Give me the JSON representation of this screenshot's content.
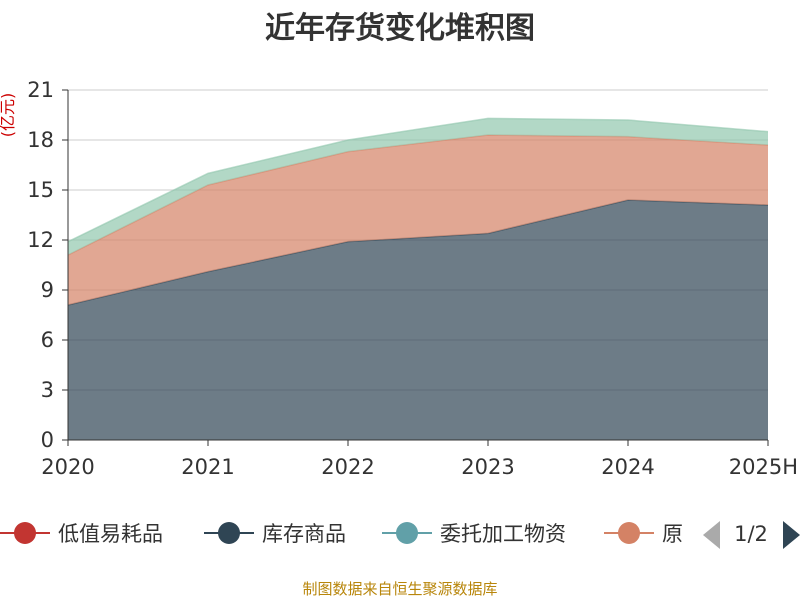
{
  "chart_data": {
    "type": "area",
    "stacked": true,
    "title": "近年存货变化堆积图",
    "ylabel": "亿元",
    "ylabel_display": "(亿元)",
    "xlabel": "",
    "ylim": [
      0,
      21
    ],
    "yticks": [
      0,
      3,
      6,
      9,
      12,
      15,
      18,
      21
    ],
    "grid": true,
    "categories": [
      "2020",
      "2021",
      "2022",
      "2023",
      "2024",
      "2025H"
    ],
    "series": [
      {
        "name": "低值易耗品",
        "color": "#c23531",
        "values": [
          0,
          0,
          0,
          0,
          0,
          0
        ],
        "draw": false
      },
      {
        "name": "库存商品",
        "color": "#2f4554",
        "values": [
          8.1,
          10.1,
          11.9,
          12.4,
          14.4,
          14.1
        ],
        "draw": true
      },
      {
        "name": "委托加工物资",
        "color": "#61a0a8",
        "values": [
          0,
          0,
          0,
          0,
          0,
          0
        ],
        "draw": false
      },
      {
        "name": "原材料",
        "color": "#d48265",
        "values": [
          3.0,
          5.2,
          5.4,
          5.9,
          3.8,
          3.6
        ],
        "draw": true
      },
      {
        "name": "",
        "color": "#91c7ae",
        "values": [
          0.8,
          0.7,
          0.7,
          1.0,
          1.0,
          0.8
        ],
        "draw": true
      }
    ],
    "legend": {
      "placement": "bottom",
      "visible_items": [
        "低值易耗品",
        "库存商品",
        "委托加工物资",
        "原"
      ],
      "page_indicator": "1/2"
    }
  },
  "source_note": "制图数据来自恒生聚源数据库",
  "colors": {
    "axis": "#333333",
    "grid": "#cccccc",
    "unit": "#cc0000",
    "source": "#b8860b",
    "pager_prev_disabled": "#aaaaaa",
    "pager_next_active": "#2f4554"
  }
}
